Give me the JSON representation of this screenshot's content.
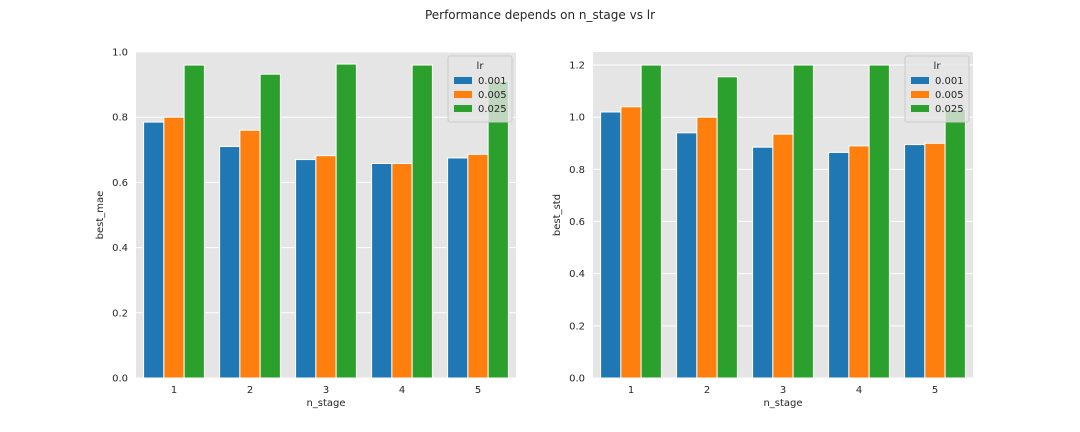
{
  "suptitle": "Performance depends on n_stage vs lr",
  "colors": {
    "panel_bg": "#e5e5e5",
    "grid": "#ffffff",
    "text": "#262626",
    "series": [
      "#1f77b4",
      "#ff7f0e",
      "#2ca02c"
    ]
  },
  "chart_data": [
    {
      "type": "bar",
      "xlabel": "n_stage",
      "ylabel": "best_mae",
      "categories": [
        "1",
        "2",
        "3",
        "4",
        "5"
      ],
      "ylim": [
        0,
        1.0
      ],
      "yticks": [
        0.0,
        0.2,
        0.4,
        0.6,
        0.8,
        1.0
      ],
      "ytick_labels": [
        "0.0",
        "0.2",
        "0.4",
        "0.6",
        "0.8",
        "1.0"
      ],
      "grid": true,
      "legend": {
        "title": "lr",
        "placement": "top-right"
      },
      "series": [
        {
          "name": "0.001",
          "values": [
            0.785,
            0.71,
            0.67,
            0.658,
            0.675
          ]
        },
        {
          "name": "0.005",
          "values": [
            0.8,
            0.76,
            0.682,
            0.658,
            0.686
          ]
        },
        {
          "name": "0.025",
          "values": [
            0.96,
            0.932,
            0.963,
            0.96,
            0.91
          ]
        }
      ]
    },
    {
      "type": "bar",
      "xlabel": "n_stage",
      "ylabel": "best_std",
      "categories": [
        "1",
        "2",
        "3",
        "4",
        "5"
      ],
      "ylim": [
        0,
        1.25
      ],
      "yticks": [
        0.0,
        0.2,
        0.4,
        0.6,
        0.8,
        1.0,
        1.2
      ],
      "ytick_labels": [
        "0.0",
        "0.2",
        "0.4",
        "0.6",
        "0.8",
        "1.0",
        "1.2"
      ],
      "grid": true,
      "legend": {
        "title": "lr",
        "placement": "top-right"
      },
      "series": [
        {
          "name": "0.001",
          "values": [
            1.02,
            0.94,
            0.885,
            0.865,
            0.895
          ]
        },
        {
          "name": "0.005",
          "values": [
            1.04,
            1.0,
            0.935,
            0.89,
            0.9
          ]
        },
        {
          "name": "0.025",
          "values": [
            1.2,
            1.155,
            1.2,
            1.2,
            1.03
          ]
        }
      ]
    }
  ]
}
